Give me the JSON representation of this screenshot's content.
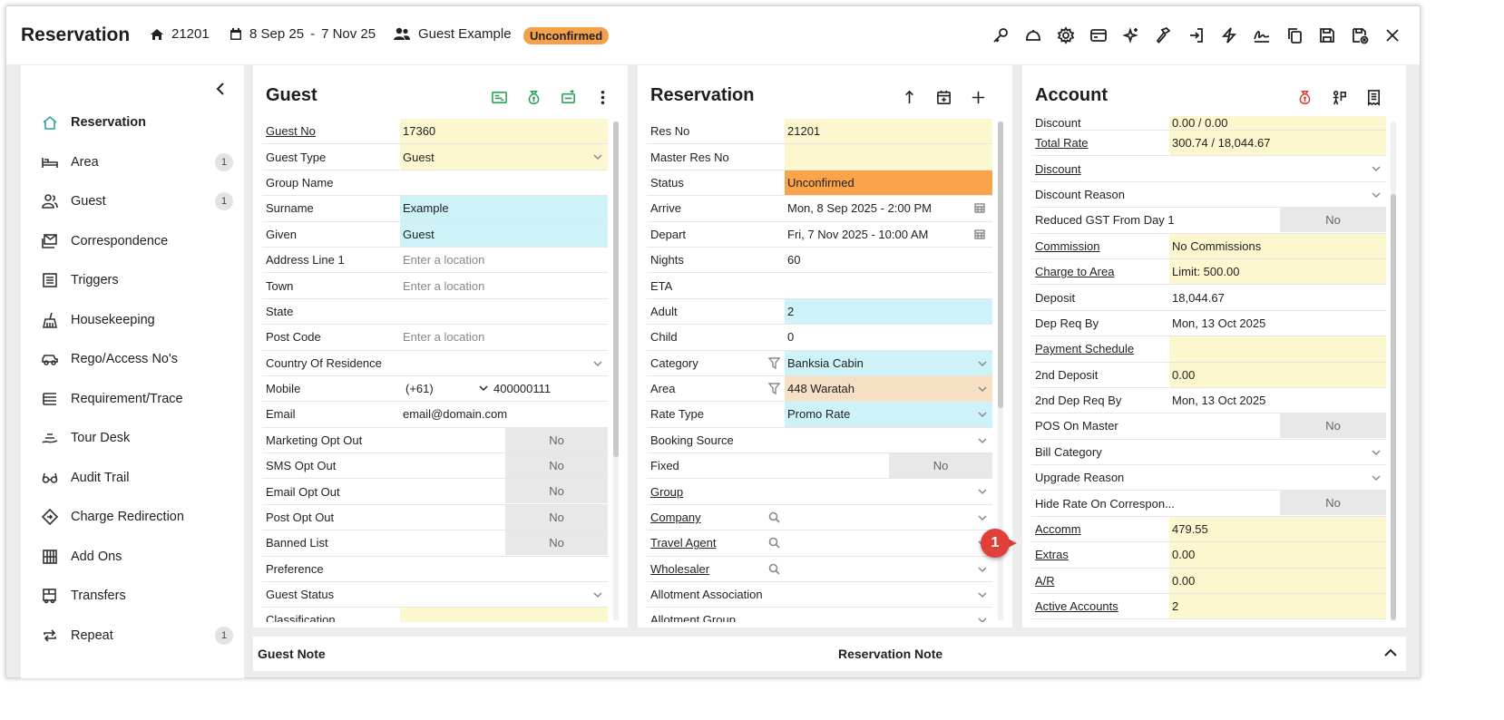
{
  "header": {
    "title": "Reservation",
    "res_no": "21201",
    "date_from": "8 Sep 25",
    "date_sep": "-",
    "date_to": "7 Nov 25",
    "guest": "Guest Example",
    "status": "Unconfirmed"
  },
  "toolbar_icons": [
    "key-icon",
    "bell-icon",
    "gear-icon",
    "card-icon",
    "sparkle-icon",
    "hammer-icon",
    "sign-in-icon",
    "bolt-icon",
    "signature-icon",
    "copy-icon",
    "save-icon",
    "save-close-icon",
    "close-icon"
  ],
  "sidebar": {
    "items": [
      {
        "label": "Reservation",
        "count": ""
      },
      {
        "label": "Area",
        "count": "1"
      },
      {
        "label": "Guest",
        "count": "1"
      },
      {
        "label": "Correspondence",
        "count": ""
      },
      {
        "label": "Triggers",
        "count": ""
      },
      {
        "label": "Housekeeping",
        "count": ""
      },
      {
        "label": "Rego/Access No's",
        "count": ""
      },
      {
        "label": "Requirement/Trace",
        "count": ""
      },
      {
        "label": "Tour Desk",
        "count": ""
      },
      {
        "label": "Audit Trail",
        "count": ""
      },
      {
        "label": "Charge Redirection",
        "count": ""
      },
      {
        "label": "Add Ons",
        "count": ""
      },
      {
        "label": "Transfers",
        "count": ""
      },
      {
        "label": "Repeat",
        "count": "1"
      }
    ]
  },
  "guest": {
    "title": "Guest",
    "rows": [
      {
        "label": "Guest No",
        "value": "17360"
      },
      {
        "label": "Guest Type",
        "value": "Guest"
      },
      {
        "label": "Group Name",
        "value": ""
      },
      {
        "label": "Surname",
        "value": "Example"
      },
      {
        "label": "Given",
        "value": "Guest"
      },
      {
        "label": "Address Line 1",
        "value": "Enter a location"
      },
      {
        "label": "Town",
        "value": "Enter a location"
      },
      {
        "label": "State",
        "value": ""
      },
      {
        "label": "Post Code",
        "value": "Enter a location"
      },
      {
        "label": "Country Of Residence",
        "value": ""
      },
      {
        "label": "Mobile",
        "value": "(+61)",
        "value2": "400000111"
      },
      {
        "label": "Email",
        "value": "email@domain.com"
      },
      {
        "label": "Marketing Opt Out",
        "value": "No"
      },
      {
        "label": "SMS Opt Out",
        "value": "No"
      },
      {
        "label": "Email Opt Out",
        "value": "No"
      },
      {
        "label": "Post Opt Out",
        "value": "No"
      },
      {
        "label": "Banned List",
        "value": "No"
      },
      {
        "label": "Preference",
        "value": ""
      },
      {
        "label": "Guest Status",
        "value": ""
      },
      {
        "label": "Classification",
        "value": ""
      }
    ]
  },
  "reservation": {
    "title": "Reservation",
    "rows": [
      {
        "label": "Res No",
        "value": "21201"
      },
      {
        "label": "Master Res No",
        "value": ""
      },
      {
        "label": "Status",
        "value": "Unconfirmed"
      },
      {
        "label": "Arrive",
        "value": "Mon, 8 Sep 2025 - 2:00 PM"
      },
      {
        "label": "Depart",
        "value": "Fri, 7 Nov 2025 - 10:00 AM"
      },
      {
        "label": "Nights",
        "value": "60"
      },
      {
        "label": "ETA",
        "value": ""
      },
      {
        "label": "Adult",
        "value": "2"
      },
      {
        "label": "Child",
        "value": "0"
      },
      {
        "label": "Category",
        "value": "Banksia Cabin"
      },
      {
        "label": "Area",
        "value": "448 Waratah"
      },
      {
        "label": "Rate Type",
        "value": "Promo Rate"
      },
      {
        "label": "Booking Source",
        "value": ""
      },
      {
        "label": "Fixed",
        "value": "No"
      },
      {
        "label": "Group",
        "value": ""
      },
      {
        "label": "Company",
        "value": ""
      },
      {
        "label": "Travel Agent",
        "value": ""
      },
      {
        "label": "Wholesaler",
        "value": ""
      },
      {
        "label": "Allotment Association",
        "value": ""
      },
      {
        "label": "Allotment Group",
        "value": ""
      }
    ]
  },
  "account": {
    "title": "Account",
    "rows": [
      {
        "label": "Discount",
        "value": "0.00 / 0.00"
      },
      {
        "label": "Total Rate",
        "value": "300.74 / 18,044.67"
      },
      {
        "label": "Discount",
        "value": ""
      },
      {
        "label": "Discount Reason",
        "value": ""
      },
      {
        "label": "Reduced GST From Day 1",
        "value": "No"
      },
      {
        "label": "Commission",
        "value": "No Commissions"
      },
      {
        "label": "Charge to Area",
        "value": "Limit: 500.00"
      },
      {
        "label": "Deposit",
        "value": "18,044.67"
      },
      {
        "label": "Dep Req By",
        "value": "Mon, 13 Oct 2025"
      },
      {
        "label": "Payment Schedule",
        "value": ""
      },
      {
        "label": "2nd Deposit",
        "value": "0.00"
      },
      {
        "label": "2nd Dep Req By",
        "value": "Mon, 13 Oct 2025"
      },
      {
        "label": "POS On Master",
        "value": "No"
      },
      {
        "label": "Bill Category",
        "value": ""
      },
      {
        "label": "Upgrade Reason",
        "value": ""
      },
      {
        "label": "Hide Rate On Correspon...",
        "value": "No"
      },
      {
        "label": "Accomm",
        "value": "479.55"
      },
      {
        "label": "Extras",
        "value": "0.00"
      },
      {
        "label": "A/R",
        "value": "0.00"
      },
      {
        "label": "Active Accounts",
        "value": "2"
      }
    ]
  },
  "notes": {
    "guest_note": "Guest Note",
    "reservation_note": "Reservation Note"
  },
  "callout": {
    "number": "1"
  },
  "colors": {
    "accent": "#2aa3a8",
    "badge": "#f5a04a",
    "status_orange": "#f9a34b",
    "yellow": "#fdf7cf",
    "cyan": "#cdf2f8",
    "callout": "#e0403a"
  }
}
